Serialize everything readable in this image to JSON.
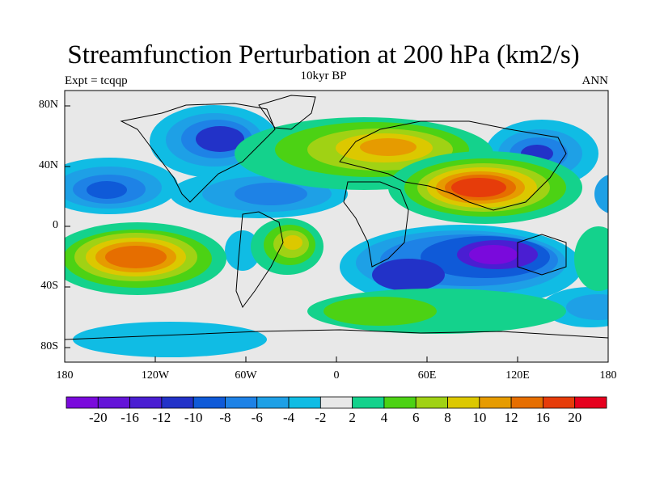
{
  "title": "Streamfunction Perturbation at 200 hPa (km2/s)",
  "left_string": "Expt = tcqqp",
  "center_string": "10kyr BP",
  "right_string": "ANN",
  "map": {
    "projection": "cylindrical-equidistant",
    "lon_range": [
      -180,
      180
    ],
    "lat_range": [
      -90,
      90
    ],
    "background_color": "#e8e8e8",
    "ytick_labels": [
      "80N",
      "40N",
      "0",
      "40S",
      "80S"
    ],
    "xtick_labels": [
      "180",
      "120W",
      "60W",
      "0",
      "60E",
      "120E",
      "180"
    ]
  },
  "colorbar": {
    "colors": [
      "#7a0adc",
      "#6414d8",
      "#4a1ed2",
      "#2232c8",
      "#0f5ad8",
      "#1e82e6",
      "#1ea0e6",
      "#10bce4",
      "#e8e8e8",
      "#14d28c",
      "#4cd214",
      "#a0d214",
      "#dcc800",
      "#e69b00",
      "#e66e00",
      "#e63c0a",
      "#e6001e"
    ],
    "labels": [
      "-20",
      "-16",
      "-12",
      "-10",
      "-8",
      "-6",
      "-4",
      "-2",
      "2",
      "4",
      "6",
      "8",
      "10",
      "12",
      "16",
      "20"
    ]
  }
}
